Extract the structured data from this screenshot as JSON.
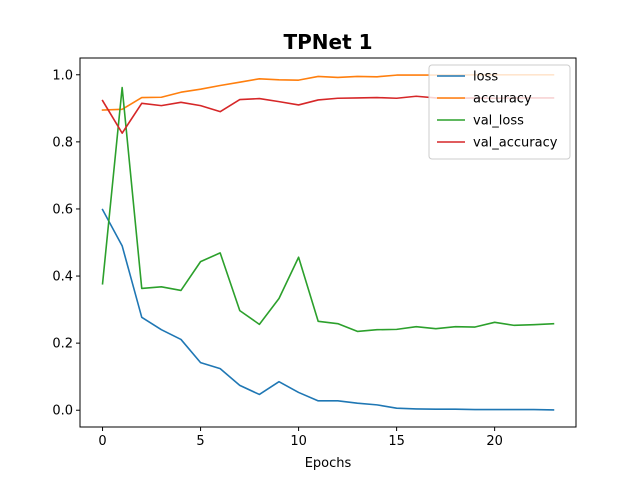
{
  "chart_data": {
    "type": "line",
    "title": "TPNet 1",
    "xlabel": "Epochs",
    "ylabel": "",
    "xlim": [
      -1.15,
      24.15
    ],
    "ylim": [
      -0.05,
      1.05
    ],
    "xticks": [
      0,
      5,
      10,
      15,
      20
    ],
    "yticks": [
      0.0,
      0.2,
      0.4,
      0.6,
      0.8,
      1.0
    ],
    "xtick_labels": [
      "0",
      "5",
      "10",
      "15",
      "20"
    ],
    "ytick_labels": [
      "0.0",
      "0.2",
      "0.4",
      "0.6",
      "0.8",
      "1.0"
    ],
    "grid": false,
    "legend_position": "top-right",
    "x": [
      0,
      1,
      2,
      3,
      4,
      5,
      6,
      7,
      8,
      9,
      10,
      11,
      12,
      13,
      14,
      15,
      16,
      17,
      18,
      19,
      20,
      21,
      22,
      23
    ],
    "series": [
      {
        "name": "loss",
        "color": "#1f77b4",
        "values": [
          0.598,
          0.49,
          0.277,
          0.24,
          0.211,
          0.142,
          0.124,
          0.074,
          0.047,
          0.085,
          0.053,
          0.028,
          0.028,
          0.021,
          0.016,
          0.006,
          0.004,
          0.003,
          0.003,
          0.002,
          0.002,
          0.002,
          0.002,
          0.001
        ]
      },
      {
        "name": "accuracy",
        "color": "#ff7f0e",
        "values": [
          0.895,
          0.897,
          0.932,
          0.933,
          0.948,
          0.957,
          0.968,
          0.978,
          0.988,
          0.985,
          0.984,
          0.995,
          0.992,
          0.995,
          0.994,
          0.999,
          0.999,
          0.999,
          0.999,
          1.0,
          1.0,
          1.0,
          1.0,
          1.0
        ]
      },
      {
        "name": "val_loss",
        "color": "#2ca02c",
        "values": [
          0.377,
          0.962,
          0.363,
          0.368,
          0.357,
          0.443,
          0.469,
          0.297,
          0.256,
          0.333,
          0.456,
          0.265,
          0.258,
          0.235,
          0.24,
          0.241,
          0.249,
          0.243,
          0.249,
          0.248,
          0.262,
          0.253,
          0.255,
          0.258
        ]
      },
      {
        "name": "val_accuracy",
        "color": "#d62728",
        "values": [
          0.923,
          0.826,
          0.915,
          0.908,
          0.918,
          0.908,
          0.89,
          0.926,
          0.929,
          0.92,
          0.91,
          0.925,
          0.93,
          0.931,
          0.932,
          0.93,
          0.936,
          0.931,
          0.93,
          0.931,
          0.93,
          0.931,
          0.931,
          0.931
        ]
      }
    ]
  }
}
